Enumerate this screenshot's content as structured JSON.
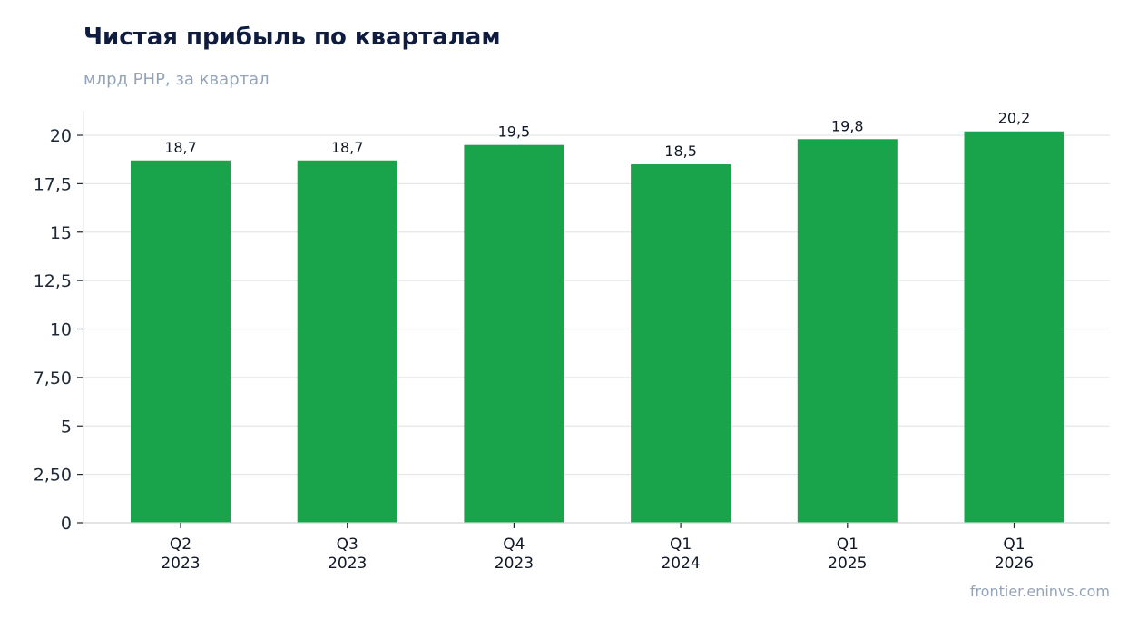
{
  "header": {
    "title": "Чистая прибыль по кварталам",
    "subtitle": "млрд РНР, за квартал"
  },
  "footer": {
    "source": "frontier.eninvs.com"
  },
  "colors": {
    "bar": "#19a34a",
    "title": "#0f1c40",
    "muted": "#94a3b8",
    "grid": "#e5e7eb",
    "axis": "#1f2937"
  },
  "chart_data": {
    "type": "bar",
    "title": "Чистая прибыль по кварталам",
    "subtitle": "млрд РНР, за квартал",
    "categories": [
      [
        "Q2",
        "2023"
      ],
      [
        "Q3",
        "2023"
      ],
      [
        "Q4",
        "2023"
      ],
      [
        "Q1",
        "2024"
      ],
      [
        "Q1",
        "2025"
      ],
      [
        "Q1",
        "2026"
      ]
    ],
    "values": [
      18.7,
      18.7,
      19.5,
      18.5,
      19.8,
      20.2
    ],
    "value_labels": [
      "18,7",
      "18,7",
      "19,5",
      "18,5",
      "19,8",
      "20,2"
    ],
    "yticks": [
      0,
      2.5,
      5,
      7.5,
      10,
      12.5,
      15,
      17.5,
      20
    ],
    "ytick_labels": [
      "0",
      "2,50",
      "5",
      "7,50",
      "10",
      "12,5",
      "15",
      "17,5",
      "20"
    ],
    "ylim": [
      0,
      21.2
    ],
    "grid": true,
    "legend": "none"
  }
}
